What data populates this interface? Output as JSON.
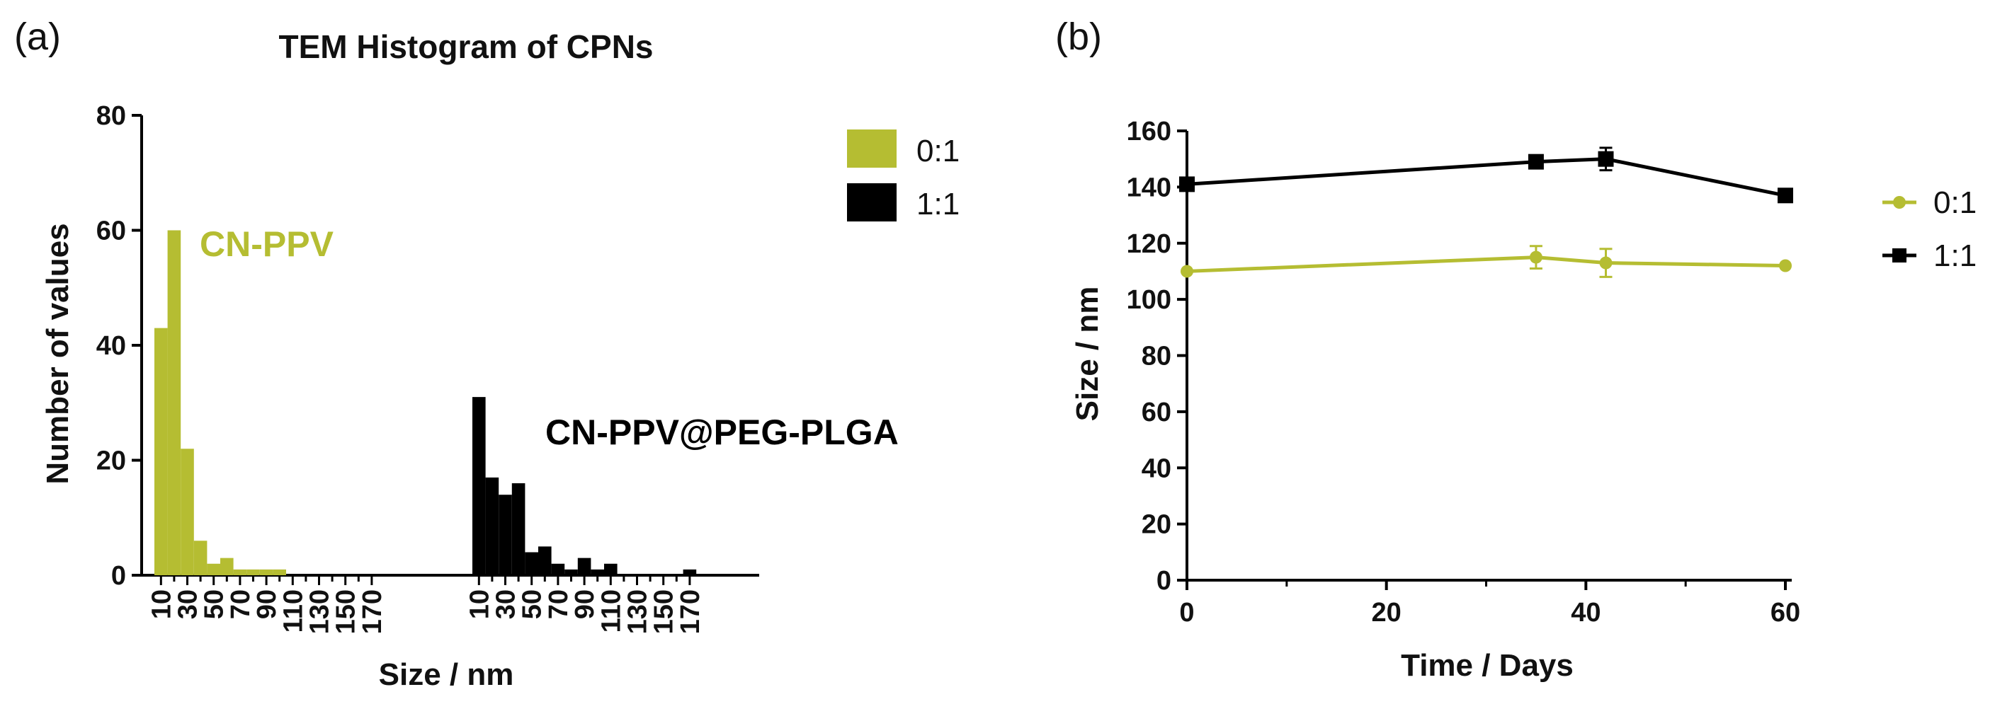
{
  "colors": {
    "olive": "#b5bd32",
    "black": "#000000"
  },
  "chart_data": [
    {
      "panel": "(a)",
      "type": "bar",
      "title": "TEM Histogram of CPNs",
      "xlabel": "Size / nm",
      "ylabel": "Number of values",
      "ylim": [
        0,
        80
      ],
      "yticks": [
        0,
        20,
        40,
        60,
        80
      ],
      "grid": false,
      "legend_position": "top-right",
      "groups": [
        {
          "name": "0:1",
          "annotation": "CN-PPV",
          "color": "#b5bd32",
          "categories": [
            10,
            20,
            30,
            40,
            50,
            60,
            70,
            80,
            90,
            100,
            110,
            120,
            130,
            140,
            150,
            160,
            170
          ],
          "tick_labels": [
            "10",
            "30",
            "50",
            "70",
            "90",
            "110",
            "130",
            "150",
            "170"
          ],
          "values": [
            43,
            60,
            22,
            6,
            2,
            3,
            1,
            1,
            1,
            1,
            0,
            0,
            0,
            0,
            0,
            0,
            0
          ]
        },
        {
          "name": "1:1",
          "annotation": "CN-PPV@PEG-PLGA",
          "color": "#000000",
          "categories": [
            10,
            20,
            30,
            40,
            50,
            60,
            70,
            80,
            90,
            100,
            110,
            120,
            130,
            140,
            150,
            160,
            170
          ],
          "tick_labels": [
            "10",
            "30",
            "50",
            "70",
            "90",
            "110",
            "130",
            "150",
            "170"
          ],
          "values": [
            31,
            17,
            14,
            16,
            4,
            5,
            2,
            1,
            3,
            1,
            2,
            0,
            0,
            0,
            0,
            0,
            1
          ]
        }
      ]
    },
    {
      "panel": "(b)",
      "type": "line",
      "xlabel": "Time / Days",
      "ylabel": "Size / nm",
      "xlim": [
        0,
        60
      ],
      "ylim": [
        0,
        160
      ],
      "xticks": [
        0,
        20,
        40,
        60
      ],
      "yticks": [
        0,
        20,
        40,
        60,
        80,
        100,
        120,
        140,
        160
      ],
      "grid": false,
      "legend_position": "right",
      "series": [
        {
          "name": "0:1",
          "color": "#b5bd32",
          "marker": "circle",
          "x": [
            0,
            35,
            42,
            60
          ],
          "y": [
            110,
            115,
            113,
            112
          ],
          "err": [
            0,
            4,
            5,
            0
          ]
        },
        {
          "name": "1:1",
          "color": "#000000",
          "marker": "square",
          "x": [
            0,
            35,
            42,
            60
          ],
          "y": [
            141,
            149,
            150,
            137
          ],
          "err": [
            2,
            2,
            4,
            2
          ]
        }
      ]
    }
  ]
}
